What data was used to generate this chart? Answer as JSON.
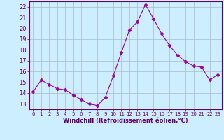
{
  "x": [
    0,
    1,
    2,
    3,
    4,
    5,
    6,
    7,
    8,
    9,
    10,
    11,
    12,
    13,
    14,
    15,
    16,
    17,
    18,
    19,
    20,
    21,
    22,
    23
  ],
  "y": [
    14.1,
    15.2,
    14.8,
    14.4,
    14.3,
    13.8,
    13.4,
    13.0,
    12.85,
    13.6,
    15.6,
    17.75,
    19.85,
    20.6,
    22.2,
    20.9,
    19.5,
    18.4,
    17.5,
    16.9,
    16.5,
    16.4,
    15.2,
    15.7
  ],
  "line_color": "#990099",
  "marker": "D",
  "marker_size": 2.5,
  "bg_color": "#cceeff",
  "grid_color": "#aabbcc",
  "xlabel": "Windchill (Refroidissement éolien,°C)",
  "xlabel_color": "#660066",
  "tick_color": "#660066",
  "ylim": [
    12.5,
    22.5
  ],
  "xlim": [
    -0.5,
    23.5
  ],
  "yticks": [
    13,
    14,
    15,
    16,
    17,
    18,
    19,
    20,
    21,
    22
  ],
  "xticks": [
    0,
    1,
    2,
    3,
    4,
    5,
    6,
    7,
    8,
    9,
    10,
    11,
    12,
    13,
    14,
    15,
    16,
    17,
    18,
    19,
    20,
    21,
    22,
    23
  ]
}
